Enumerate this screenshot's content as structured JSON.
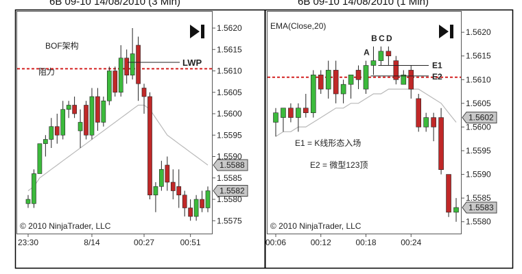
{
  "chart_data": [
    {
      "type": "candlestick",
      "title": "6B 09-10  14/08/2010 (3 Min)",
      "ylim": [
        1.5572,
        1.5624
      ],
      "y_ticks": [
        "1.5575",
        "1.5580",
        "1.5585",
        "1.5590",
        "1.5595",
        "1.5600",
        "1.5605",
        "1.5610",
        "1.5615",
        "1.5620"
      ],
      "x_ticks": [
        {
          "label": "23:30",
          "bar": 0
        },
        {
          "label": "8/14",
          "bar": 11
        },
        {
          "label": "00:27",
          "bar": 20
        },
        {
          "label": "00:51",
          "bar": 28
        }
      ],
      "price_badges": [
        "1.5588",
        "1.5582"
      ],
      "badge_values": [
        1.5588,
        1.5582
      ],
      "resistance_level": 1.56105,
      "annotations": {
        "bof": "BOF架构",
        "resistance": "阻力",
        "lwp": "LWP"
      },
      "lwp_level": 1.5612,
      "copyright": "© 2010 NinjaTrader, LLC",
      "bars": [
        {
          "o": 1.5579,
          "h": 1.5581,
          "l": 1.5578,
          "c": 1.558
        },
        {
          "o": 1.5579,
          "h": 1.5587,
          "l": 1.5578,
          "c": 1.5586
        },
        {
          "o": 1.5586,
          "h": 1.5593,
          "l": 1.5586,
          "c": 1.5593
        },
        {
          "o": 1.5593,
          "h": 1.5595,
          "l": 1.559,
          "c": 1.5594
        },
        {
          "o": 1.5594,
          "h": 1.5599,
          "l": 1.5592,
          "c": 1.5597
        },
        {
          "o": 1.5597,
          "h": 1.56,
          "l": 1.5593,
          "c": 1.5595
        },
        {
          "o": 1.5595,
          "h": 1.5603,
          "l": 1.5594,
          "c": 1.5601
        },
        {
          "o": 1.5601,
          "h": 1.5603,
          "l": 1.5599,
          "c": 1.5602
        },
        {
          "o": 1.5602,
          "h": 1.5604,
          "l": 1.5599,
          "c": 1.56
        },
        {
          "o": 1.5596,
          "h": 1.5601,
          "l": 1.5592,
          "c": 1.5598
        },
        {
          "o": 1.5602,
          "h": 1.5603,
          "l": 1.5594,
          "c": 1.5595
        },
        {
          "o": 1.5595,
          "h": 1.5606,
          "l": 1.5594,
          "c": 1.5604
        },
        {
          "o": 1.5604,
          "h": 1.5606,
          "l": 1.5596,
          "c": 1.5598
        },
        {
          "o": 1.5598,
          "h": 1.5604,
          "l": 1.5597,
          "c": 1.5603
        },
        {
          "o": 1.5603,
          "h": 1.5611,
          "l": 1.5602,
          "c": 1.561
        },
        {
          "o": 1.561,
          "h": 1.5611,
          "l": 1.5604,
          "c": 1.5605
        },
        {
          "o": 1.5605,
          "h": 1.5616,
          "l": 1.5604,
          "c": 1.5613
        },
        {
          "o": 1.5613,
          "h": 1.5615,
          "l": 1.5607,
          "c": 1.5609
        },
        {
          "o": 1.5609,
          "h": 1.562,
          "l": 1.5608,
          "c": 1.5614
        },
        {
          "o": 1.5616,
          "h": 1.5618,
          "l": 1.5603,
          "c": 1.5607
        },
        {
          "o": 1.5606,
          "h": 1.5607,
          "l": 1.56,
          "c": 1.5604
        },
        {
          "o": 1.5604,
          "h": 1.5605,
          "l": 1.558,
          "c": 1.5581
        },
        {
          "o": 1.5581,
          "h": 1.5584,
          "l": 1.5577,
          "c": 1.5583
        },
        {
          "o": 1.5583,
          "h": 1.5589,
          "l": 1.5582,
          "c": 1.5587
        },
        {
          "o": 1.5588,
          "h": 1.559,
          "l": 1.5582,
          "c": 1.5584
        },
        {
          "o": 1.5584,
          "h": 1.5587,
          "l": 1.558,
          "c": 1.5582
        },
        {
          "o": 1.5583,
          "h": 1.5587,
          "l": 1.5578,
          "c": 1.5581
        },
        {
          "o": 1.5581,
          "h": 1.5582,
          "l": 1.5576,
          "c": 1.5578
        },
        {
          "o": 1.5578,
          "h": 1.558,
          "l": 1.5575,
          "c": 1.5576
        },
        {
          "o": 1.5576,
          "h": 1.5581,
          "l": 1.5575,
          "c": 1.558
        },
        {
          "o": 1.558,
          "h": 1.5582,
          "l": 1.5577,
          "c": 1.5578
        },
        {
          "o": 1.5578,
          "h": 1.5583,
          "l": 1.5577,
          "c": 1.5582
        }
      ],
      "ema": [
        1.5582,
        1.5583,
        1.5585,
        1.5586,
        1.5587,
        1.5588,
        1.5589,
        1.559,
        1.5591,
        1.5592,
        1.5593,
        1.5594,
        1.5595,
        1.5596,
        1.5597,
        1.5598,
        1.5599,
        1.56,
        1.5601,
        1.5602,
        1.5602,
        1.5601,
        1.5599,
        1.5597,
        1.5595,
        1.5594,
        1.5593,
        1.5592,
        1.5591,
        1.559,
        1.5589,
        1.5588
      ]
    },
    {
      "type": "candlestick",
      "title": "6B 09-10  14/08/2010 (1 Min)",
      "ema_label": "EMA(Close,20)",
      "ylim": [
        1.55775,
        1.56245
      ],
      "y_ticks": [
        "1.5580",
        "1.5585",
        "1.5590",
        "1.5595",
        "1.5600",
        "1.5605",
        "1.5610",
        "1.5615",
        "1.5620"
      ],
      "x_ticks": [
        {
          "label": "00:06",
          "bar": 0
        },
        {
          "label": "00:12",
          "bar": 6
        },
        {
          "label": "00:18",
          "bar": 12
        },
        {
          "label": "00:24",
          "bar": 18
        }
      ],
      "price_badges": [
        "1.5602",
        "1.5583"
      ],
      "badge_values": [
        1.5602,
        1.5583
      ],
      "resistance_level": 1.56105,
      "labels": {
        "a": "A",
        "b": "B",
        "c": "C",
        "d": "D",
        "e1": "E1",
        "e2": "E2"
      },
      "e1_level": 1.5613,
      "e2_level": 1.56115,
      "legend_e1": "E1 = K线形态入场",
      "legend_e2": "E2 = 微型123顶",
      "copyright": "© 2010 NinjaTrader, LLC",
      "bars": [
        {
          "o": 1.5601,
          "h": 1.5604,
          "l": 1.5598,
          "c": 1.5603
        },
        {
          "o": 1.5602,
          "h": 1.5604,
          "l": 1.5599,
          "c": 1.5604
        },
        {
          "o": 1.5604,
          "h": 1.5605,
          "l": 1.5601,
          "c": 1.5602
        },
        {
          "o": 1.5602,
          "h": 1.5605,
          "l": 1.5599,
          "c": 1.5604
        },
        {
          "o": 1.5604,
          "h": 1.5607,
          "l": 1.5602,
          "c": 1.5603
        },
        {
          "o": 1.5603,
          "h": 1.5612,
          "l": 1.5602,
          "c": 1.5611
        },
        {
          "o": 1.5611,
          "h": 1.5612,
          "l": 1.5607,
          "c": 1.5608
        },
        {
          "o": 1.5608,
          "h": 1.5614,
          "l": 1.5606,
          "c": 1.5612
        },
        {
          "o": 1.5612,
          "h": 1.5614,
          "l": 1.5605,
          "c": 1.5607
        },
        {
          "o": 1.5607,
          "h": 1.561,
          "l": 1.5605,
          "c": 1.5609
        },
        {
          "o": 1.5609,
          "h": 1.5611,
          "l": 1.5606,
          "c": 1.5611
        },
        {
          "o": 1.5612,
          "h": 1.5613,
          "l": 1.5608,
          "c": 1.561
        },
        {
          "o": 1.5608,
          "h": 1.5614,
          "l": 1.5607,
          "c": 1.5613
        },
        {
          "o": 1.5613,
          "h": 1.5617,
          "l": 1.5611,
          "c": 1.5614
        },
        {
          "o": 1.5614,
          "h": 1.5617,
          "l": 1.5613,
          "c": 1.5616
        },
        {
          "o": 1.5616,
          "h": 1.5617,
          "l": 1.5613,
          "c": 1.5615
        },
        {
          "o": 1.5614,
          "h": 1.5615,
          "l": 1.5609,
          "c": 1.561
        },
        {
          "o": 1.5609,
          "h": 1.5612,
          "l": 1.5609,
          "c": 1.5611
        },
        {
          "o": 1.5612,
          "h": 1.5613,
          "l": 1.5606,
          "c": 1.5608
        },
        {
          "o": 1.5606,
          "h": 1.5607,
          "l": 1.5599,
          "c": 1.56
        },
        {
          "o": 1.56,
          "h": 1.5603,
          "l": 1.5599,
          "c": 1.5602
        },
        {
          "o": 1.5602,
          "h": 1.5603,
          "l": 1.5597,
          "c": 1.56
        },
        {
          "o": 1.5602,
          "h": 1.5604,
          "l": 1.559,
          "c": 1.5591
        },
        {
          "o": 1.559,
          "h": 1.559,
          "l": 1.5581,
          "c": 1.5582
        },
        {
          "o": 1.5582,
          "h": 1.5585,
          "l": 1.558,
          "c": 1.5583
        }
      ],
      "ema": [
        1.5598,
        1.5599,
        1.5599,
        1.56,
        1.56,
        1.5601,
        1.5602,
        1.5603,
        1.5604,
        1.5604,
        1.5605,
        1.5605,
        1.5606,
        1.5607,
        1.5607,
        1.5608,
        1.5608,
        1.5608,
        1.5608,
        1.5608,
        1.5607,
        1.5606,
        1.5605,
        1.5603,
        1.5601
      ]
    }
  ]
}
